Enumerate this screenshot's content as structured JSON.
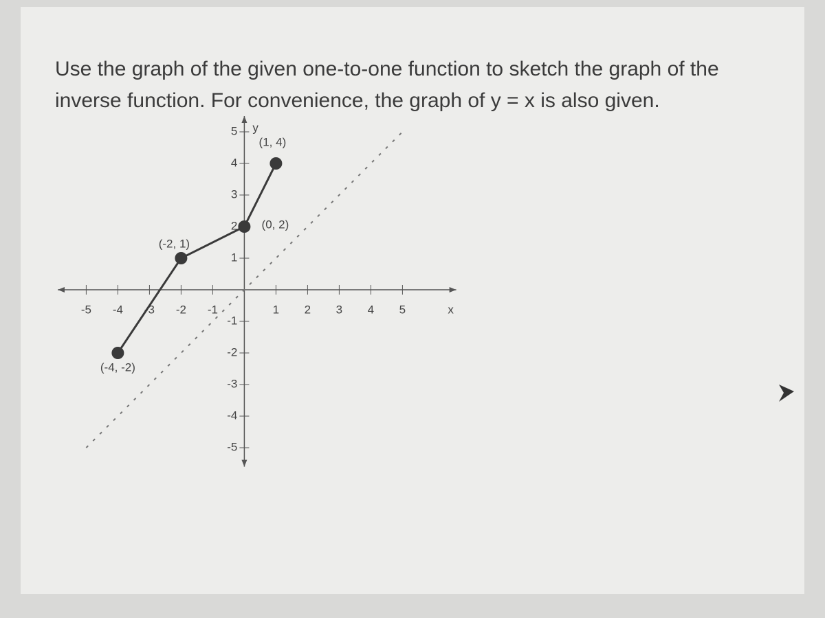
{
  "question": "Use the graph of the given one-to-one function to sketch the graph of the inverse function. For convenience, the graph of y = x is also given.",
  "chart_data": {
    "type": "line",
    "xlabel": "x",
    "ylabel": "y",
    "xlim": [
      -5.9,
      6.7
    ],
    "ylim": [
      -5.6,
      5.5
    ],
    "xticks": [
      -5,
      -4,
      -3,
      -2,
      -1,
      1,
      2,
      3,
      4,
      5
    ],
    "yticks": [
      -5,
      -4,
      -3,
      -2,
      -1,
      1,
      2,
      3,
      4,
      5
    ],
    "grid": false,
    "series": [
      {
        "x": [
          -4,
          -2,
          0,
          1
        ],
        "values": [
          -2,
          1,
          2,
          4
        ],
        "color": "#3a3a3a",
        "markers": true,
        "point_labels": [
          "(-4, -2)",
          "(-2, 1)",
          "(0, 2)",
          "(1, 4)"
        ]
      },
      {
        "x": [
          -5,
          5
        ],
        "values": [
          -5,
          5
        ],
        "color": "#777777",
        "dashed": true
      }
    ]
  }
}
